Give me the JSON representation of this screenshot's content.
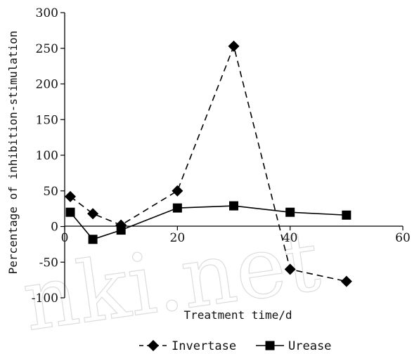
{
  "chart_data": {
    "type": "line",
    "title": "",
    "xlabel": "Treatment time/d",
    "ylabel": "Percentage of inhibition-stimulation",
    "xlim": [
      0,
      60
    ],
    "ylim": [
      -100,
      300
    ],
    "xticks": [
      0,
      20,
      40,
      60
    ],
    "yticks": [
      -100,
      -50,
      0,
      50,
      100,
      150,
      200,
      250,
      300
    ],
    "grid": false,
    "legend_position": "bottom-center",
    "series": [
      {
        "name": "Invertase",
        "marker": "diamond",
        "line_style": "dashed",
        "color": "#000000",
        "x": [
          1,
          5,
          10,
          20,
          30,
          40,
          50
        ],
        "y": [
          42,
          18,
          2,
          50,
          253,
          -60,
          -77
        ]
      },
      {
        "name": "Urease",
        "marker": "square",
        "line_style": "solid",
        "color": "#000000",
        "x": [
          1,
          5,
          10,
          20,
          30,
          40,
          50
        ],
        "y": [
          20,
          -18,
          -5,
          26,
          29,
          20,
          16
        ]
      }
    ]
  },
  "watermark_text": "nki.net"
}
